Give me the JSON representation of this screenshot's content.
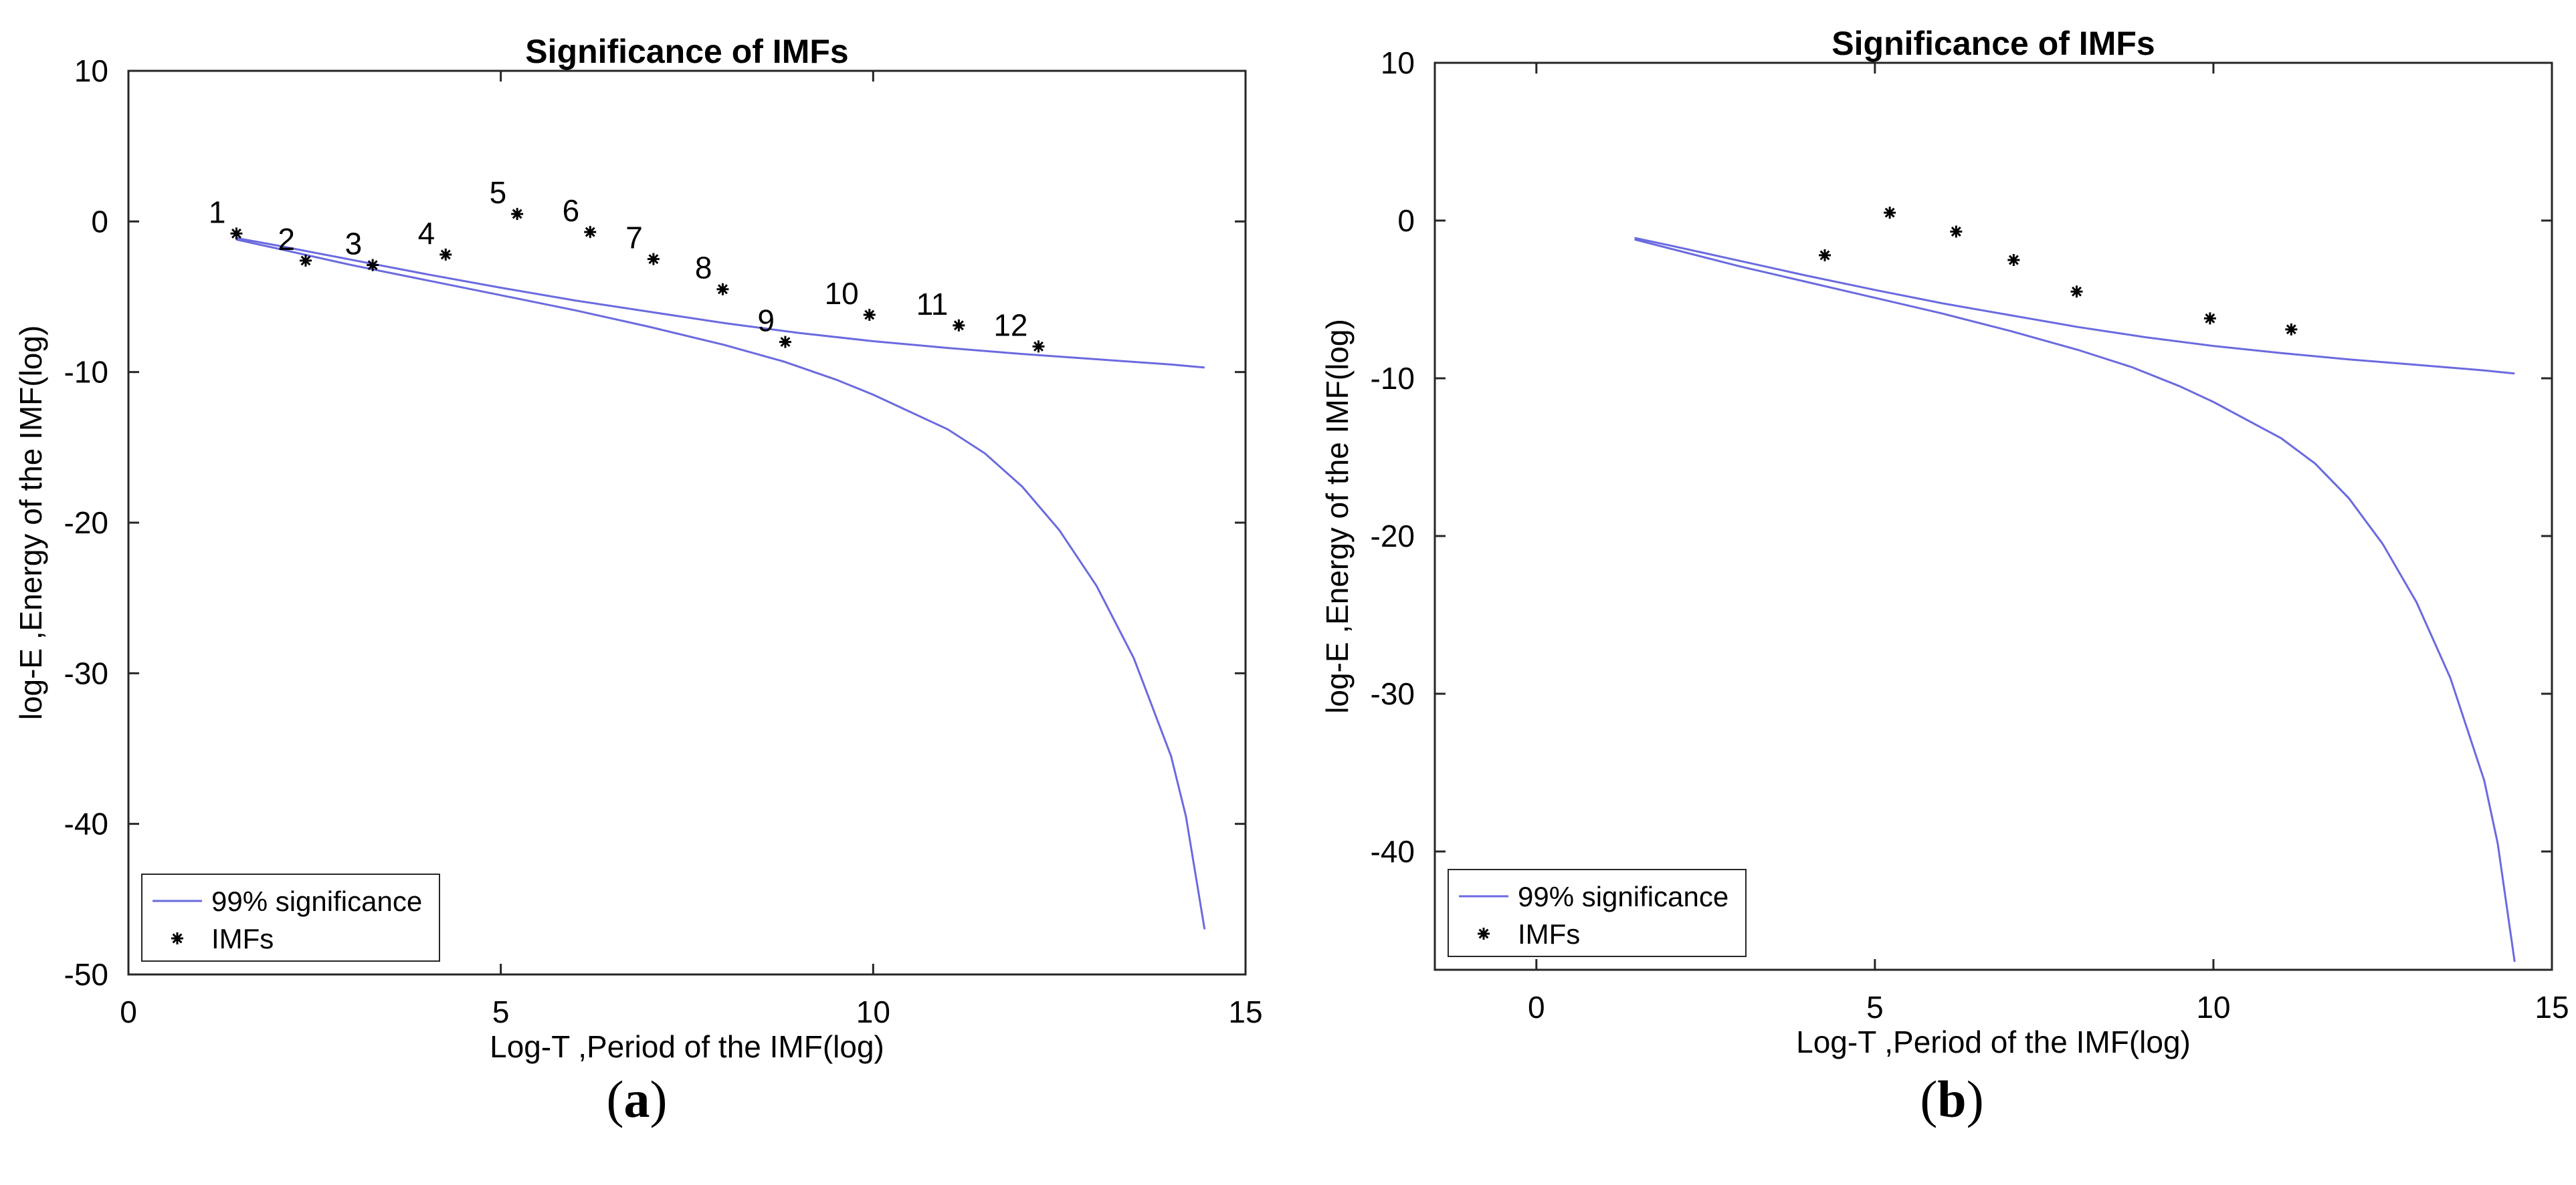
{
  "colors": {
    "line": "#6a6ae0",
    "marker": "#000000",
    "axis": "#262626",
    "text": "#000000"
  },
  "chart_data": [
    {
      "panel": "a",
      "type": "scatter",
      "title": "Significance of IMFs",
      "xlabel": "Log-T ,Period of the IMF(log)",
      "ylabel": "log-E ,Energy of the IMF(log)",
      "xlim": [
        0,
        15
      ],
      "ylim": [
        -50,
        10
      ],
      "xticks": [
        0,
        5,
        10,
        15
      ],
      "yticks": [
        10,
        0,
        -10,
        -20,
        -30,
        -40,
        -50
      ],
      "legend": {
        "position": "bottom-left",
        "entries": [
          "99% significance",
          "IMFs"
        ]
      },
      "series": [
        {
          "name": "99% significance upper",
          "kind": "line",
          "x": [
            1.45,
            2,
            3,
            4,
            5,
            6,
            7,
            8,
            9,
            10,
            11,
            12,
            13,
            14,
            14.45
          ],
          "y": [
            -1.1,
            -1.6,
            -2.55,
            -3.5,
            -4.4,
            -5.25,
            -6.0,
            -6.75,
            -7.4,
            -7.95,
            -8.4,
            -8.8,
            -9.15,
            -9.5,
            -9.7
          ]
        },
        {
          "name": "99% significance lower",
          "kind": "line",
          "x": [
            1.45,
            2,
            3,
            4,
            5,
            6,
            7,
            8,
            8.8,
            9.5,
            10,
            11,
            11.5,
            12,
            12.5,
            13,
            13.5,
            14,
            14.2,
            14.45
          ],
          "y": [
            -1.2,
            -1.8,
            -2.9,
            -3.9,
            -4.9,
            -5.9,
            -7.0,
            -8.2,
            -9.3,
            -10.5,
            -11.5,
            -13.8,
            -15.4,
            -17.6,
            -20.5,
            -24.2,
            -29.0,
            -35.5,
            -39.5,
            -47.0
          ]
        },
        {
          "name": "IMFs",
          "kind": "points",
          "labels": [
            "1",
            "2",
            "3",
            "4",
            "5",
            "6",
            "7",
            "8",
            "9",
            "10",
            "11",
            "12"
          ],
          "x": [
            1.45,
            2.38,
            3.28,
            4.26,
            5.22,
            6.2,
            7.05,
            7.98,
            8.82,
            9.95,
            11.15,
            12.22
          ],
          "y": [
            -0.8,
            -2.6,
            -2.9,
            -2.2,
            0.5,
            -0.7,
            -2.5,
            -4.5,
            -8.0,
            -6.2,
            -6.9,
            -8.3
          ]
        }
      ]
    },
    {
      "panel": "b",
      "type": "scatter",
      "title": "Significance of IMFs",
      "xlabel": "Log-T ,Period of the IMF(log)",
      "ylabel": "log-E ,Energy of the IMF(log)",
      "xlim": [
        -1.5,
        15
      ],
      "ylim": [
        -47.5,
        10
      ],
      "xticks": [
        0,
        5,
        10,
        15
      ],
      "yticks": [
        10,
        0,
        -10,
        -20,
        -30,
        -40
      ],
      "legend": {
        "position": "bottom-left",
        "entries": [
          "99% significance",
          "IMFs"
        ]
      },
      "series": [
        {
          "name": "99% significance upper",
          "kind": "line",
          "x": [
            1.45,
            2,
            3,
            4,
            5,
            6,
            7,
            8,
            9,
            10,
            11,
            12,
            13,
            14,
            14.45
          ],
          "y": [
            -1.1,
            -1.6,
            -2.55,
            -3.5,
            -4.4,
            -5.25,
            -6.0,
            -6.75,
            -7.4,
            -7.95,
            -8.4,
            -8.8,
            -9.15,
            -9.5,
            -9.7
          ]
        },
        {
          "name": "99% significance lower",
          "kind": "line",
          "x": [
            1.45,
            2,
            3,
            4,
            5,
            6,
            7,
            8,
            8.8,
            9.5,
            10,
            11,
            11.5,
            12,
            12.5,
            13,
            13.5,
            14,
            14.2,
            14.45
          ],
          "y": [
            -1.2,
            -1.8,
            -2.9,
            -3.9,
            -4.9,
            -5.9,
            -7.0,
            -8.2,
            -9.3,
            -10.5,
            -11.5,
            -13.8,
            -15.4,
            -17.6,
            -20.5,
            -24.2,
            -29.0,
            -35.5,
            -39.5,
            -47.0
          ]
        },
        {
          "name": "IMFs",
          "kind": "points",
          "labels": [],
          "x": [
            4.26,
            5.22,
            6.2,
            7.05,
            7.98,
            9.95,
            11.15
          ],
          "y": [
            -2.2,
            0.5,
            -0.7,
            -2.5,
            -4.5,
            -6.2,
            -6.9
          ]
        }
      ]
    }
  ],
  "captions": [
    {
      "open": "(",
      "letter": "a",
      "close": ")"
    },
    {
      "open": "(",
      "letter": "b",
      "close": ")"
    }
  ]
}
